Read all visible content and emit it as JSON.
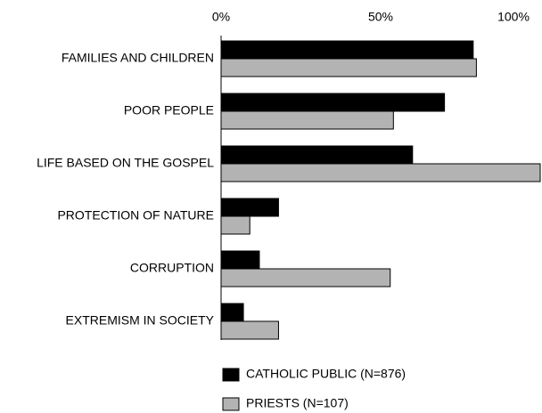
{
  "chart_data": {
    "type": "bar",
    "orientation": "horizontal",
    "categories": [
      "FAMILIES AND CHILDREN",
      "POOR PEOPLE",
      "LIFE BASED ON THE GOSPEL",
      "PROTECTION OF NATURE",
      "CORRUPTION",
      "EXTREMISM  IN SOCIETY"
    ],
    "series": [
      {
        "name": "CATHOLIC PUBLIC (N=876)",
        "color": "#000000",
        "values": [
          79,
          70,
          60,
          18,
          12,
          7
        ]
      },
      {
        "name": "PRIESTS (N=107)",
        "color": "#b3b3b3",
        "values": [
          80,
          54,
          100,
          9,
          53,
          18
        ]
      }
    ],
    "xlim": [
      0,
      100
    ],
    "xticks": [
      {
        "value": 0,
        "label": "0%"
      },
      {
        "value": 50,
        "label": "50%"
      },
      {
        "value": 100,
        "label": "100%"
      }
    ],
    "grid": false,
    "legend": "bottom"
  }
}
